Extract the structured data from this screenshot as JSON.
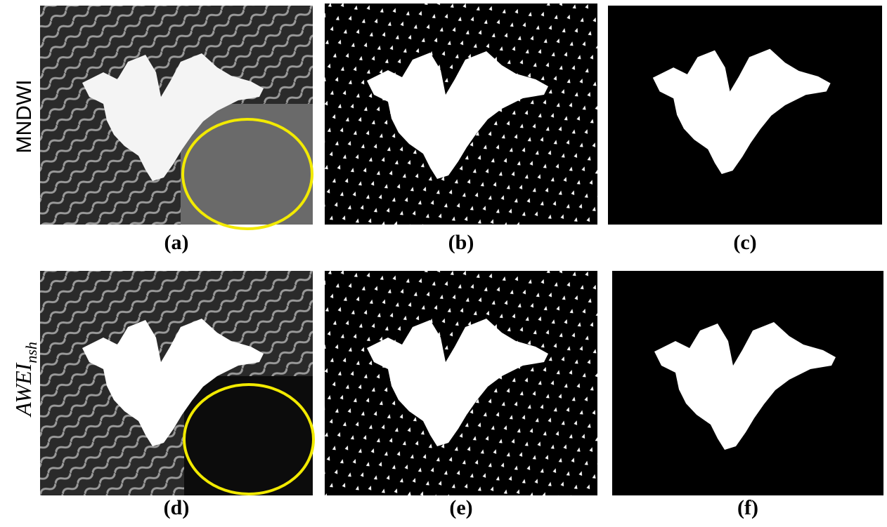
{
  "row_labels": [
    "MNDWI",
    {
      "main": "AWEI",
      "sub": "nsh"
    }
  ],
  "panel_labels": [
    "(a)",
    "(b)",
    "(c)",
    "(d)",
    "(e)",
    "(f)"
  ]
}
